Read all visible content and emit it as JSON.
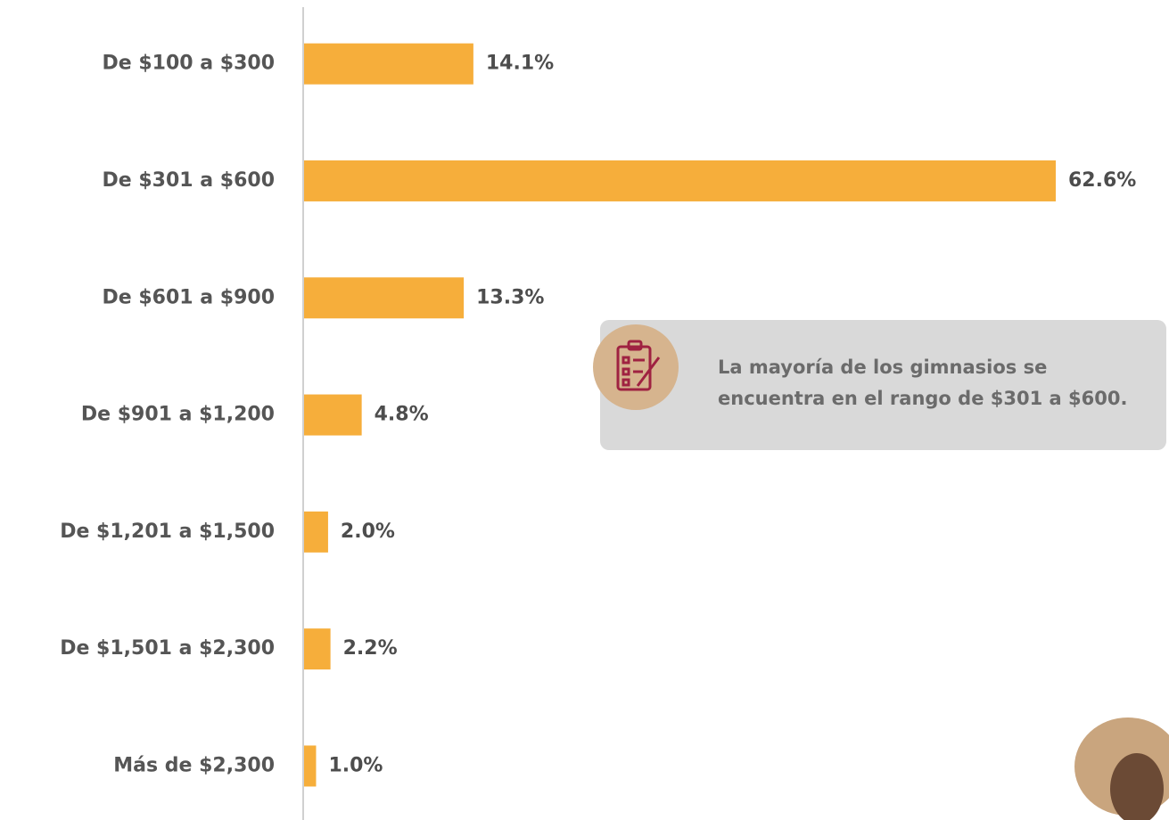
{
  "chart_data": {
    "type": "bar",
    "orientation": "horizontal",
    "categories": [
      "De $100 a $300",
      "De $301 a $600",
      "De $601 a $900",
      "De $901 a $1,200",
      "De $1,201 a $1,500",
      "De $1,501 a $2,300",
      "Más de $2,300"
    ],
    "values": [
      14.1,
      62.6,
      13.3,
      4.8,
      2.0,
      2.2,
      1.0
    ],
    "value_labels": [
      "14.1%",
      "62.6%",
      "13.3%",
      "4.8%",
      "2.0%",
      "2.2%",
      "1.0%"
    ],
    "color": "#f6ae3b",
    "annotation": "La mayoría de los gimnasios se encuentra en el rango de $301 a $600."
  }
}
